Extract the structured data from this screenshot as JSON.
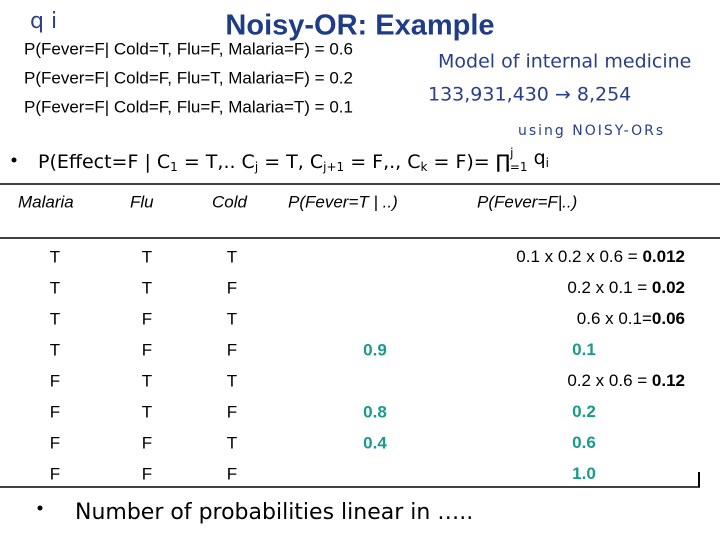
{
  "header": {
    "title": "Noisy-OR: Example",
    "handwritten_note": "q i"
  },
  "given": [
    "P(Fever=F| Cold=T, Flu=F, Malaria=F) = 0.6",
    "P(Fever=F| Cold=F, Flu=T, Malaria=F) = 0.2",
    "P(Fever=F| Cold=F, Flu=F, Malaria=T) = 0.1"
  ],
  "annotations": {
    "model": "Model of internal medicine",
    "reduction": "133,931,430 → 8,254",
    "using": "using NOISY-ORs"
  },
  "formula": {
    "segments": [
      "P(Effect=F | C",
      "1",
      " = T,.. C",
      "j",
      " = T, C",
      "j+1",
      " = F,., C",
      "k",
      " = F)= ∏",
      "i=1",
      " q",
      "i"
    ],
    "product_upper": "j"
  },
  "table": {
    "headers": [
      "Malaria",
      "Flu",
      "Cold",
      "P(Fever=T | ..)",
      "P(Fever=F|..)"
    ],
    "rows": [
      [
        "T",
        "T",
        "T",
        null,
        [
          "0.1 x 0.2 x 0.6 = ",
          "0.012"
        ]
      ],
      [
        "T",
        "T",
        "F",
        null,
        [
          "0.2 x 0.1 = ",
          "0.02"
        ]
      ],
      [
        "T",
        "F",
        "T",
        null,
        [
          "0.6 x 0.1=",
          "0.06"
        ]
      ],
      [
        "T",
        "F",
        "F",
        "0.9",
        [
          null,
          "0.1"
        ]
      ],
      [
        "F",
        "T",
        "T",
        null,
        [
          "0.2 x 0.6 = ",
          "0.12"
        ]
      ],
      [
        "F",
        "T",
        "F",
        "0.8",
        [
          null,
          "0.2"
        ]
      ],
      [
        "F",
        "F",
        "T",
        "0.4",
        [
          null,
          "0.6"
        ]
      ],
      [
        "F",
        "F",
        "F",
        null,
        [
          null,
          "1.0"
        ]
      ]
    ]
  },
  "footer_bullet": "Number of probabilities linear in ….."
}
